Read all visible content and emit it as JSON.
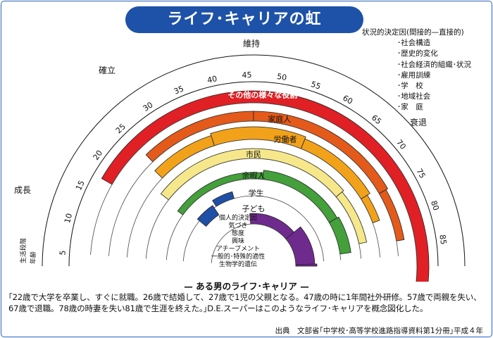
{
  "title": "ライフ･キャリアの虹",
  "factors": {
    "title": "状況的決定因(間接的—直接的)",
    "items": [
      "社会構造",
      "歴史的変化",
      "社会経済的組織･状況",
      "雇用訓練",
      "学　校",
      "地域社会",
      "家　庭"
    ]
  },
  "stages": [
    "成長",
    "確立",
    "維持",
    "衰退"
  ],
  "ages": [
    "5",
    "10",
    "15",
    "20",
    "25",
    "30",
    "35",
    "40",
    "45",
    "50",
    "55",
    "60",
    "65",
    "70",
    "75",
    "80",
    "85"
  ],
  "roles": [
    {
      "label": "その他の様々な役割",
      "color": "#e02024"
    },
    {
      "label": "家庭人",
      "color": "#e45a1a"
    },
    {
      "label": "労働者",
      "color": "#f2a21a"
    },
    {
      "label": "市民",
      "color": "#f6e78a"
    },
    {
      "label": "余暇人",
      "color": "#43a03a"
    },
    {
      "label": "学生",
      "color": "#1f4fa6"
    },
    {
      "label": "子ども",
      "color": "#6f2a8e"
    }
  ],
  "axis_labels": {
    "life_stage": "生活段階",
    "age": "年齢"
  },
  "determinants": [
    "個人的決定因",
    "気づき",
    "態度",
    "興味",
    "アチーブメント",
    "一般的･特殊的適性",
    "生物学的遺伝"
  ],
  "caption": "— ある男のライフ･キャリア —",
  "description": "｢22歳で大学を卒業し、すぐに就職。26歳で結婚して、27歳で1児の父親となる。47歳の時に1年間社外研修。57歳で両親を失い、67歳で退職。78歳の時妻を失い81歳で生涯を終えた。｣D.E.スーパーはこのようなライフ･キャリアを概念図化した。",
  "source": "出典　文部省｢中学校･高等学校進路指導資料第1分冊｣平成４年"
}
